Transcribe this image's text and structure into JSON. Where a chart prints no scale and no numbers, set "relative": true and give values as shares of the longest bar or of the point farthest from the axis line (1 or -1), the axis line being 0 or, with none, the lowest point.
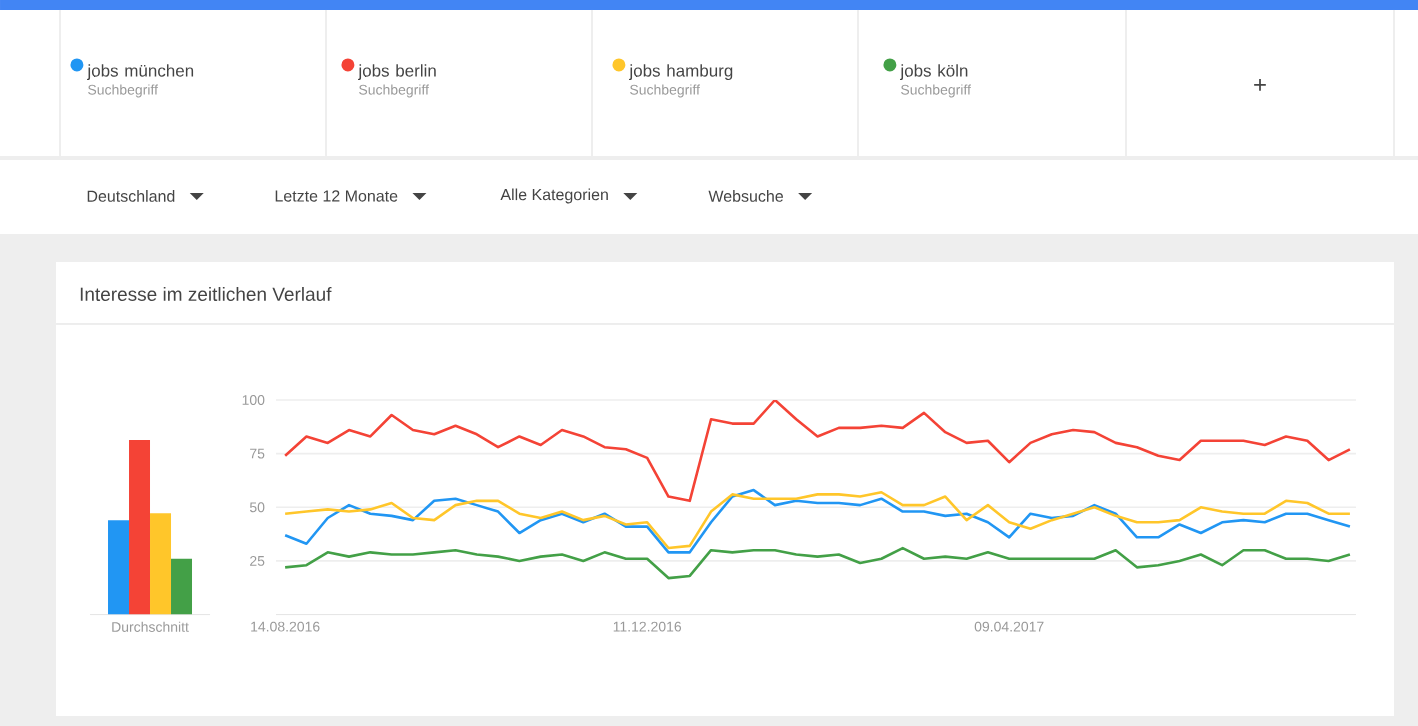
{
  "chart_data": [
    {
      "type": "bar",
      "relative": true,
      "categories": [
        "Durchschnitt"
      ],
      "series": [
        {
          "color": "#2196f3",
          "values": [
            0.54
          ]
        },
        {
          "color": "#f44336",
          "values": [
            1
          ]
        },
        {
          "color": "#ffc62a",
          "values": [
            0.58
          ]
        },
        {
          "color": "#43a047",
          "values": [
            0.32
          ]
        }
      ]
    },
    {
      "type": "line",
      "title": "Interesse im zeitlichen Verlauf",
      "x": [
        "2016-08-14",
        "2016-08-21",
        "2016-08-28",
        "2016-09-04",
        "2016-09-11",
        "2016-09-18",
        "2016-09-25",
        "2016-10-02",
        "2016-10-09",
        "2016-10-16",
        "2016-10-23",
        "2016-10-30",
        "2016-11-06",
        "2016-11-13",
        "2016-11-20",
        "2016-11-27",
        "2016-12-04",
        "2016-12-11",
        "2016-12-18",
        "2016-12-25",
        "2017-01-01",
        "2017-01-08",
        "2017-01-15",
        "2017-01-22",
        "2017-01-29",
        "2017-02-05",
        "2017-02-12",
        "2017-02-19",
        "2017-02-26",
        "2017-03-05",
        "2017-03-12",
        "2017-03-19",
        "2017-03-26",
        "2017-04-02",
        "2017-04-09",
        "2017-04-16",
        "2017-04-23",
        "2017-04-30",
        "2017-05-07",
        "2017-05-14",
        "2017-05-21",
        "2017-05-28",
        "2017-06-04",
        "2017-06-11",
        "2017-06-18",
        "2017-06-25",
        "2017-07-02",
        "2017-07-09",
        "2017-07-16",
        "2017-07-23",
        "2017-07-30"
      ],
      "series": [
        {
          "name": "jobs münchen",
          "color": "#2196f3",
          "values": [
            37,
            33,
            45,
            51,
            47,
            46,
            44,
            53,
            54,
            51,
            48,
            38,
            44,
            47,
            43,
            47,
            41,
            41,
            29,
            29,
            43,
            55,
            58,
            51,
            53,
            52,
            52,
            51,
            54,
            48,
            48,
            46,
            47,
            43,
            36,
            47,
            45,
            46,
            51,
            47,
            36,
            36,
            42,
            38,
            43,
            44,
            43,
            47,
            47,
            44,
            41
          ]
        },
        {
          "name": "jobs berlin",
          "color": "#f44336",
          "values": [
            74,
            83,
            80,
            86,
            83,
            93,
            86,
            84,
            88,
            84,
            78,
            83,
            79,
            86,
            83,
            78,
            77,
            73,
            55,
            53,
            91,
            89,
            89,
            100,
            91,
            83,
            87,
            87,
            88,
            87,
            94,
            85,
            80,
            81,
            71,
            80,
            84,
            86,
            85,
            80,
            78,
            74,
            72,
            81,
            81,
            81,
            79,
            83,
            81,
            72,
            77
          ]
        },
        {
          "name": "jobs hamburg",
          "color": "#ffc62a",
          "values": [
            47,
            48,
            49,
            48,
            49,
            52,
            45,
            44,
            51,
            53,
            53,
            47,
            45,
            48,
            44,
            46,
            42,
            43,
            31,
            32,
            48,
            56,
            54,
            54,
            54,
            56,
            56,
            55,
            57,
            51,
            51,
            55,
            44,
            51,
            43,
            40,
            44,
            47,
            50,
            46,
            43,
            43,
            44,
            50,
            48,
            47,
            47,
            53,
            52,
            47,
            47
          ]
        },
        {
          "name": "jobs köln",
          "color": "#43a047",
          "values": [
            22,
            23,
            29,
            27,
            29,
            28,
            28,
            29,
            30,
            28,
            27,
            25,
            27,
            28,
            25,
            29,
            26,
            26,
            17,
            18,
            30,
            29,
            30,
            30,
            28,
            27,
            28,
            24,
            26,
            31,
            26,
            27,
            26,
            29,
            26,
            26,
            26,
            26,
            26,
            30,
            22,
            23,
            25,
            28,
            23,
            30,
            30,
            26,
            26,
            25,
            28
          ]
        }
      ],
      "xlim": [
        "2016-08-11",
        "2017-08-01"
      ],
      "ylim": [
        0,
        100
      ],
      "xticks": [
        {
          "value": "2016-08-14",
          "label": "14.08.2016"
        },
        {
          "value": "2016-12-11",
          "label": "11.12.2016"
        },
        {
          "value": "2017-04-09",
          "label": "09.04.2017"
        }
      ],
      "yticks": [
        25,
        50,
        75,
        100
      ],
      "grid": "y",
      "legend": "top",
      "annotations": [
        "Suchbegriff",
        "Suchbegriff",
        "Suchbegriff",
        "Suchbegriff",
        "Deutschland",
        "Letzte 12 Monate",
        "Alle Kategorien",
        "Websuche",
        "+"
      ]
    }
  ]
}
